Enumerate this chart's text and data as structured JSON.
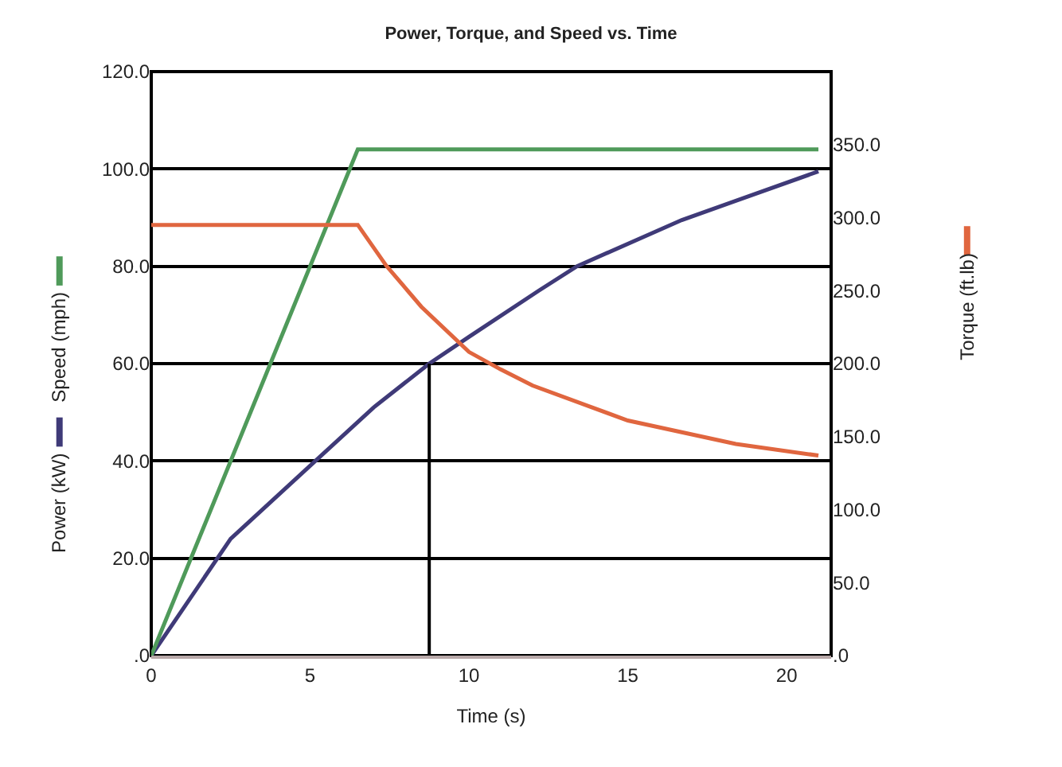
{
  "chart_data": {
    "type": "line",
    "title": "Power, Torque, and Speed vs. Time",
    "xlabel": "Time (s)",
    "series": [
      {
        "name": "Power (kW)",
        "color": "#3f3a78",
        "x": [
          0,
          2.5,
          5,
          7,
          8.75,
          10,
          12.2,
          13.4,
          16.7,
          21
        ],
        "values": [
          0,
          24,
          39,
          51,
          60,
          65.5,
          75,
          80,
          89.5,
          99.5
        ]
      },
      {
        "name": "Speed (mph)",
        "color": "#4f9a5a",
        "x": [
          0,
          6.5,
          21
        ],
        "values": [
          0,
          104,
          104
        ]
      },
      {
        "name": "Torque (ft.lb)",
        "color": "#e0663f",
        "axis": "y2",
        "x": [
          0,
          6.5,
          7.4,
          8.5,
          10,
          11,
          12,
          15,
          18.4,
          21
        ],
        "values": [
          295,
          295,
          267,
          239,
          208,
          196,
          185,
          161,
          145,
          137
        ]
      },
      {
        "color": "#000000",
        "x": [
          8.75,
          8.75
        ],
        "values": [
          0,
          60
        ]
      }
    ],
    "xlim": [
      0,
      21.4
    ],
    "xticks": [
      0,
      5,
      10,
      15,
      20
    ],
    "ylim": [
      0,
      120
    ],
    "yticks": [
      {
        "value": 0,
        "label": ".0"
      },
      {
        "value": 20,
        "label": "20.0"
      },
      {
        "value": 40,
        "label": "40.0"
      },
      {
        "value": 60,
        "label": "60.0"
      },
      {
        "value": 80,
        "label": "80.0"
      },
      {
        "value": 100,
        "label": "100.0"
      },
      {
        "value": 120,
        "label": "120.0"
      }
    ],
    "y2lim": [
      0,
      400
    ],
    "y2ticks": [
      {
        "value": 0,
        "label": ".0"
      },
      {
        "value": 50,
        "label": "50.0"
      },
      {
        "value": 100,
        "label": "100.0"
      },
      {
        "value": 150,
        "label": "150.0"
      },
      {
        "value": 200,
        "label": "200.0"
      },
      {
        "value": 250,
        "label": "250.0"
      },
      {
        "value": 300,
        "label": "300.0"
      },
      {
        "value": 350,
        "label": "350.0"
      }
    ],
    "grid": "y",
    "legend": "left",
    "marker": "none",
    "line_style": "solid"
  }
}
